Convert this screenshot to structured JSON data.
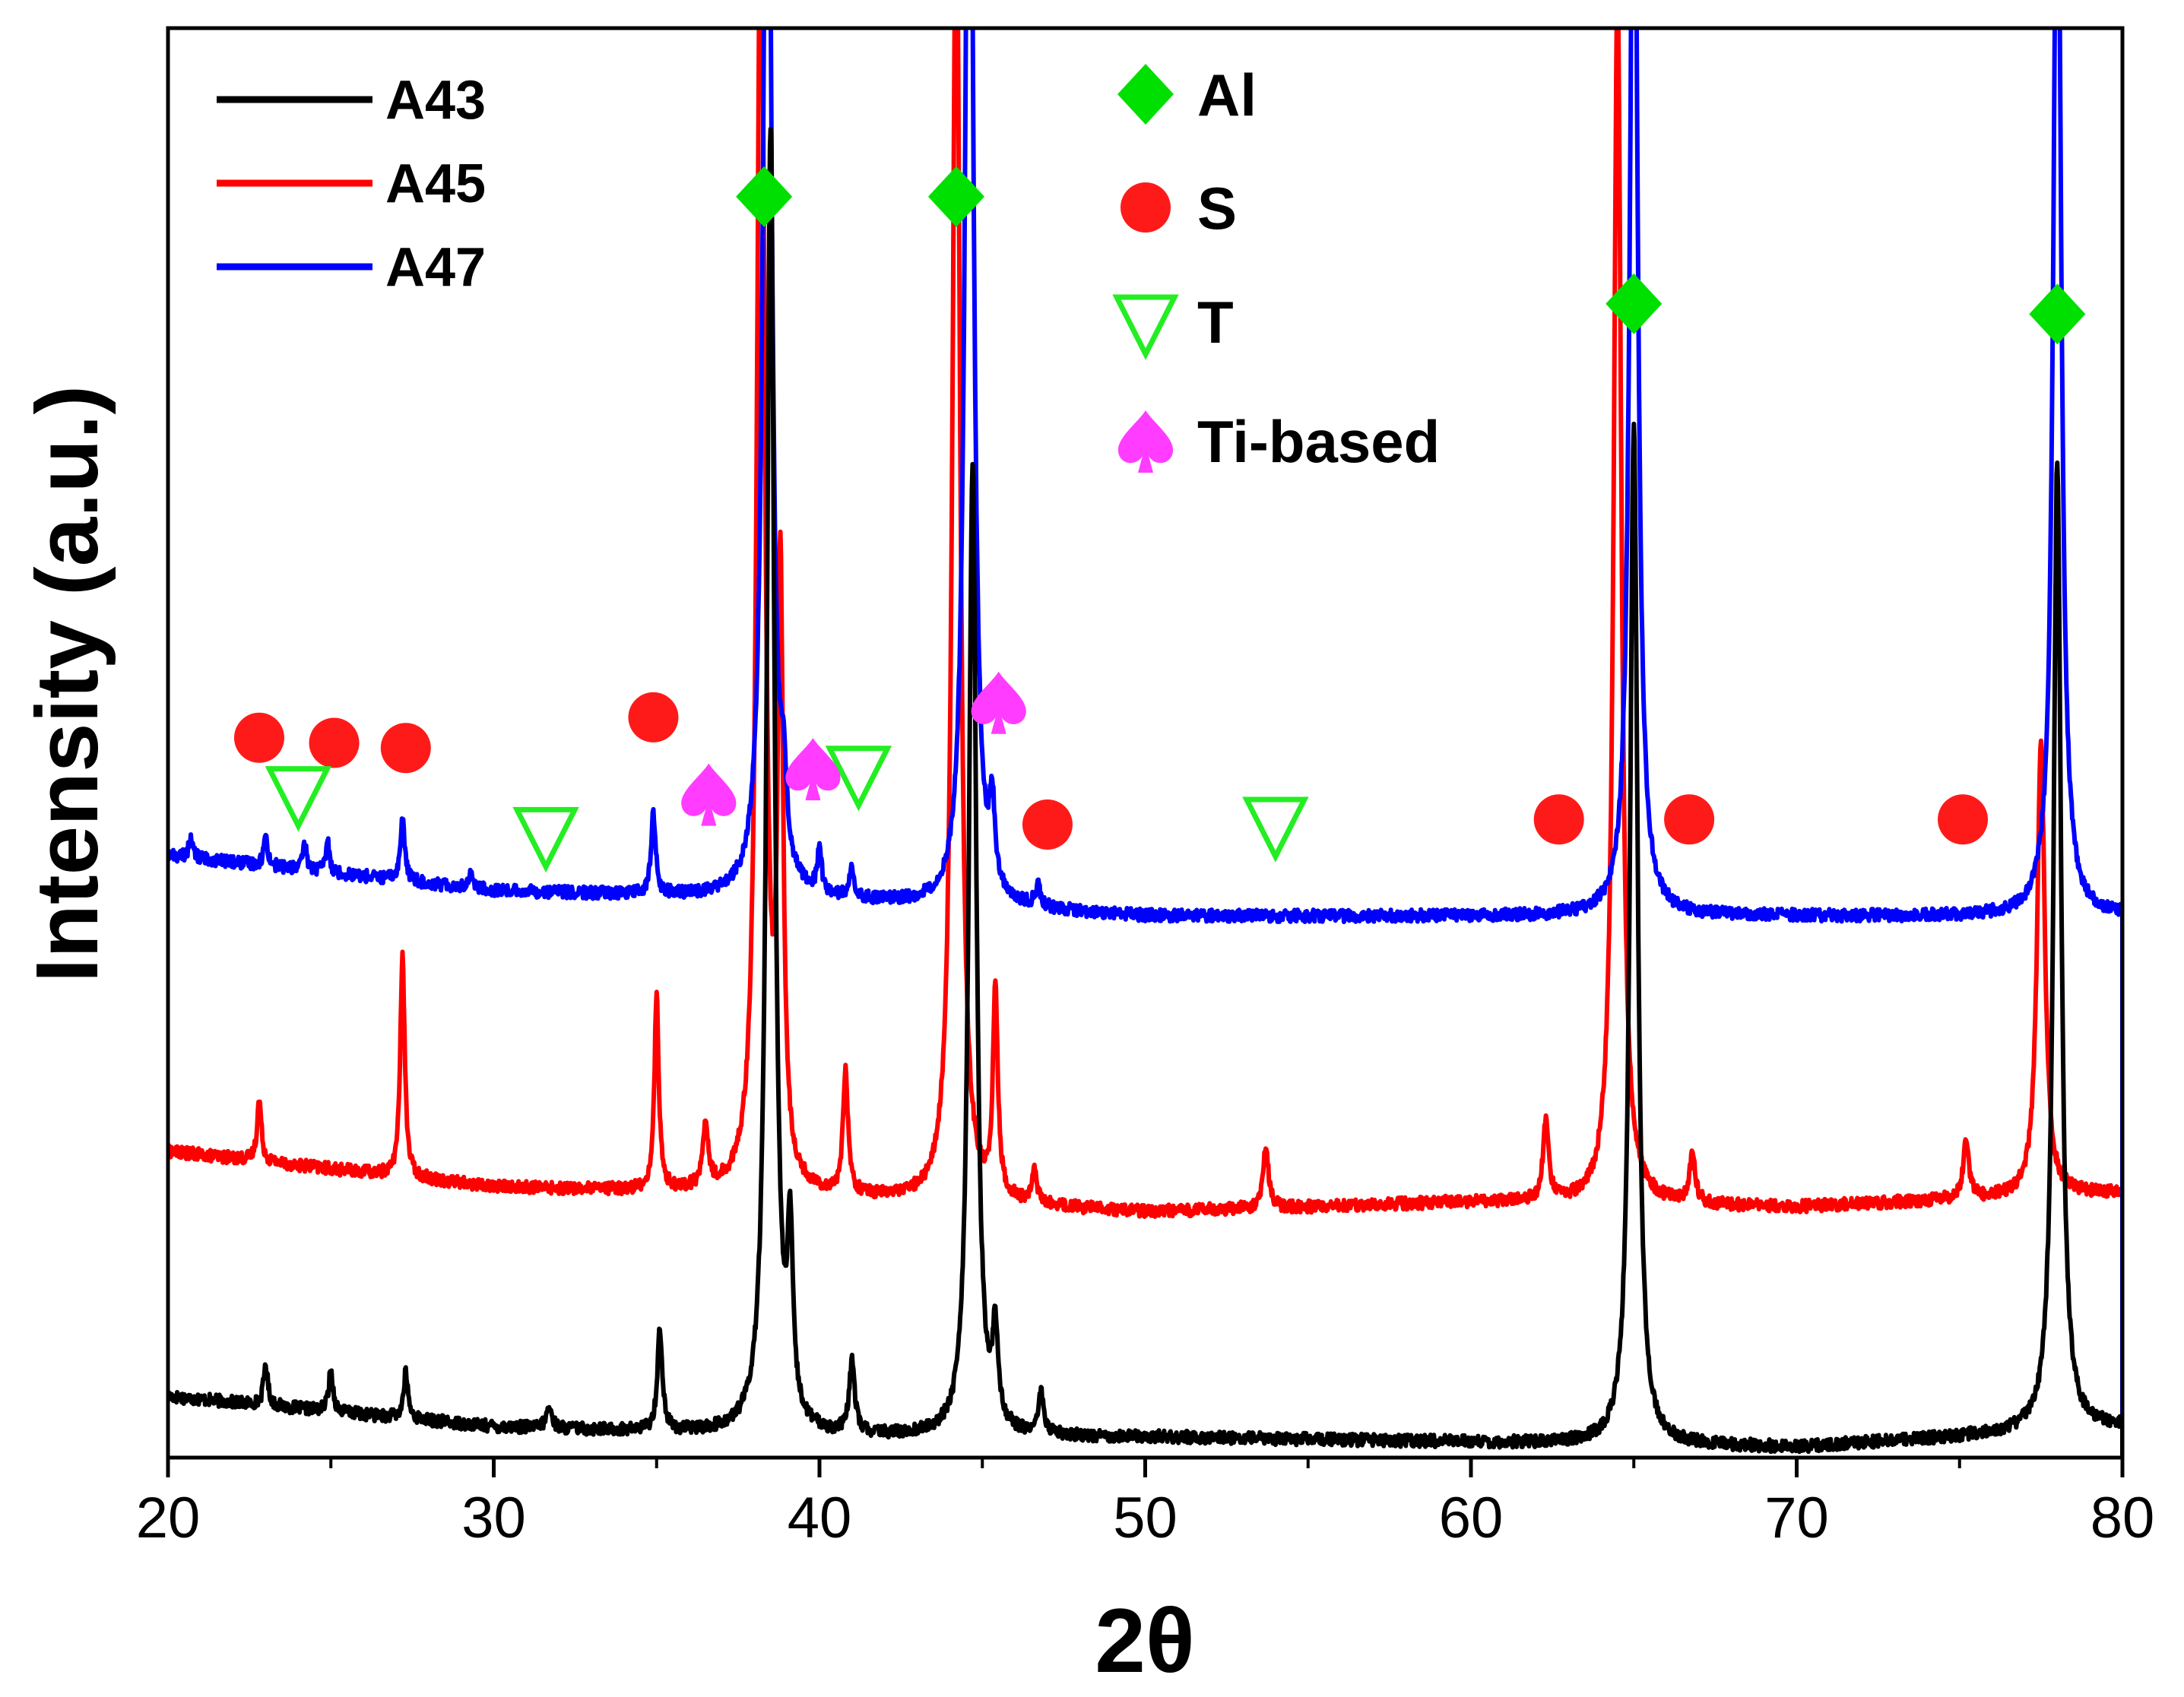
{
  "chart_data": {
    "type": "line",
    "title": "",
    "xlabel": "2θ",
    "ylabel": "Intensity (a.u.)",
    "xlim": [
      20,
      80
    ],
    "ylim": [
      0,
      14
    ],
    "x_ticks": [
      20,
      30,
      40,
      50,
      60,
      70,
      80
    ],
    "x_tick_labels": [
      "20",
      "30",
      "40",
      "50",
      "60",
      "70",
      "80"
    ],
    "legend_position": "top-left",
    "series": [
      {
        "name": "A43",
        "color": "#000000",
        "baseline": 0.35,
        "baseline_points": [
          [
            20,
            0.6
          ],
          [
            30,
            0.3
          ],
          [
            40,
            0.2
          ],
          [
            50,
            0.2
          ],
          [
            60,
            0.15
          ],
          [
            70,
            0.1
          ],
          [
            80,
            0.3
          ]
        ],
        "peaks": [
          [
            23,
            0.4,
            0.08
          ],
          [
            25,
            0.4,
            0.08
          ],
          [
            27.3,
            0.45,
            0.08
          ],
          [
            31.7,
            0.2,
            0.1
          ],
          [
            35.1,
            1.0,
            0.09
          ],
          [
            38.5,
            12.8,
            0.14
          ],
          [
            39.1,
            1.7,
            0.1
          ],
          [
            41.0,
            0.7,
            0.1
          ],
          [
            44.7,
            9.5,
            0.14
          ],
          [
            45.4,
            0.9,
            0.1
          ],
          [
            46.8,
            0.4,
            0.1
          ],
          [
            65.0,
            10.0,
            0.14
          ],
          [
            78.0,
            9.5,
            0.14
          ]
        ]
      },
      {
        "name": "A45",
        "color": "#ff0000",
        "baseline": 2.7,
        "baseline_points": [
          [
            20,
            3.0
          ],
          [
            30,
            2.65
          ],
          [
            40,
            2.55
          ],
          [
            50,
            2.4
          ],
          [
            60,
            2.5
          ],
          [
            70,
            2.45
          ],
          [
            80,
            2.6
          ]
        ],
        "peaks": [
          [
            22.8,
            0.6,
            0.08
          ],
          [
            27.2,
            2.2,
            0.08
          ],
          [
            35.0,
            1.9,
            0.08
          ],
          [
            36.5,
            0.6,
            0.1
          ],
          [
            38.2,
            13.2,
            0.14
          ],
          [
            38.8,
            5.8,
            0.1
          ],
          [
            40.8,
            1.2,
            0.09
          ],
          [
            44.2,
            13.2,
            0.14
          ],
          [
            45.4,
            2.0,
            0.09
          ],
          [
            46.6,
            0.3,
            0.1
          ],
          [
            53.7,
            0.6,
            0.1
          ],
          [
            62.3,
            0.8,
            0.1
          ],
          [
            64.5,
            12.0,
            0.14
          ],
          [
            66.8,
            0.5,
            0.1
          ],
          [
            75.2,
            0.6,
            0.1
          ],
          [
            77.5,
            4.5,
            0.14
          ]
        ]
      },
      {
        "name": "A47",
        "color": "#0000ff",
        "baseline": 5.6,
        "baseline_points": [
          [
            20,
            5.9
          ],
          [
            30,
            5.55
          ],
          [
            40,
            5.45
          ],
          [
            50,
            5.3
          ],
          [
            60,
            5.3
          ],
          [
            70,
            5.3
          ],
          [
            80,
            5.3
          ]
        ],
        "peaks": [
          [
            20.7,
            0.2,
            0.07
          ],
          [
            23,
            0.3,
            0.07
          ],
          [
            24.2,
            0.25,
            0.07
          ],
          [
            24.9,
            0.3,
            0.07
          ],
          [
            27.2,
            0.6,
            0.08
          ],
          [
            29.3,
            0.15,
            0.08
          ],
          [
            34.9,
            0.8,
            0.08
          ],
          [
            38.4,
            13.5,
            0.14
          ],
          [
            38.9,
            0.8,
            0.1
          ],
          [
            40.0,
            0.4,
            0.08
          ],
          [
            41.0,
            0.3,
            0.08
          ],
          [
            44.6,
            13.5,
            0.14
          ],
          [
            45.3,
            0.8,
            0.09
          ],
          [
            46.7,
            0.2,
            0.09
          ],
          [
            65.0,
            12.0,
            0.14
          ],
          [
            78.0,
            11.5,
            0.14
          ]
        ]
      }
    ],
    "phase_markers": {
      "Al": [
        [
          38.3,
          12.35
        ],
        [
          44.2,
          12.35
        ],
        [
          65.0,
          11.3
        ],
        [
          78.0,
          11.2
        ]
      ],
      "S": [
        [
          22.8,
          7.05
        ],
        [
          25.1,
          7.0
        ],
        [
          27.3,
          6.95
        ],
        [
          34.9,
          7.25
        ],
        [
          47.0,
          6.2
        ],
        [
          62.7,
          6.25
        ],
        [
          66.7,
          6.25
        ],
        [
          75.1,
          6.25
        ]
      ],
      "T": [
        [
          24.0,
          6.5
        ],
        [
          31.6,
          6.1
        ],
        [
          41.2,
          6.7
        ],
        [
          54.0,
          6.2
        ]
      ],
      "Ti-based": [
        [
          36.6,
          6.5
        ],
        [
          39.8,
          6.75
        ],
        [
          45.5,
          7.4
        ]
      ]
    },
    "phase_legend": [
      {
        "symbol": "diamond",
        "label": "Al",
        "color": "#00e000"
      },
      {
        "symbol": "circle",
        "label": "S",
        "color": "#ff1a1a"
      },
      {
        "symbol": "triangle-down-open",
        "label": "T",
        "color": "#22ee22"
      },
      {
        "symbol": "spade",
        "label": "Ti-based",
        "color": "#ff3cff"
      }
    ]
  }
}
